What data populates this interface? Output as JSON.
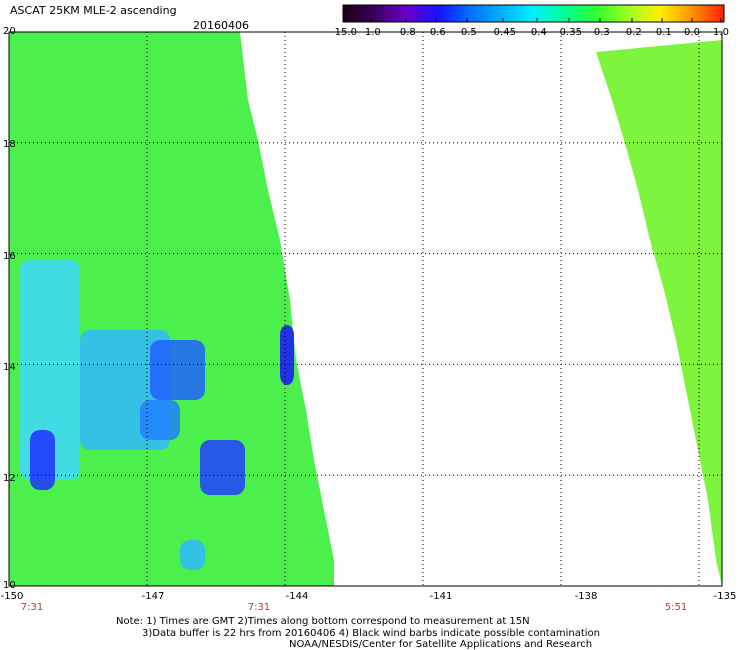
{
  "title": "ASCAT 25KM MLE-2 ascending",
  "date": "20160406",
  "colorbar": {
    "labels": [
      "-15.0",
      "-1.0",
      "-0.8",
      "-0.6",
      "-0.5",
      "-0.45",
      "-0.4",
      "-0.35",
      "-0.3",
      "-0.2",
      "-0.1",
      "0.0",
      "1.0"
    ],
    "colors": [
      "#1a0010",
      "#3c0060",
      "#6a00c8",
      "#1a10ff",
      "#0070ff",
      "#00b0ff",
      "#00f0ff",
      "#00ff90",
      "#30ff30",
      "#a0ff20",
      "#ffee00",
      "#ff9000",
      "#ff2000"
    ]
  },
  "map": {
    "lat_labels": [
      "20",
      "18",
      "16",
      "14",
      "12",
      "10"
    ],
    "lon_labels": [
      "-150",
      "-147",
      "-144",
      "-141",
      "-138",
      "-135"
    ],
    "time_labels": [
      "7:31",
      "7:31",
      "5:51"
    ],
    "lat_range": [
      10,
      20
    ],
    "lon_range": [
      -150,
      -134.5
    ]
  },
  "notes": [
    "Note: 1) Times are GMT 2)Times along bottom correspond to measurement at 15N",
    "3)Data buffer is 22 hrs from 20160406 4) Black wind barbs indicate possible contamination",
    "NOAA/NESDIS/Center for Satellite Applications and Research"
  ]
}
